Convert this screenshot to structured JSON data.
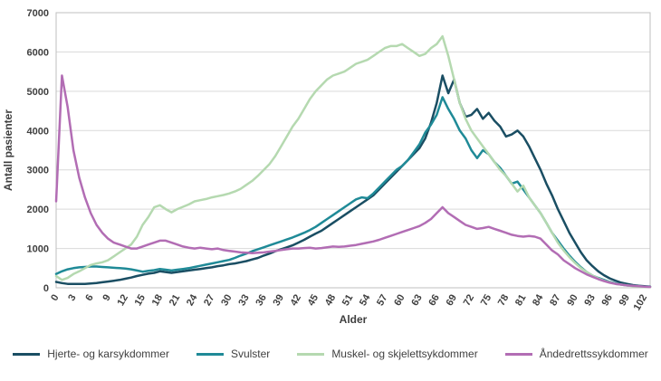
{
  "chart_data": {
    "type": "line",
    "title": "",
    "xlabel": "Alder",
    "ylabel": "Antall pasienter",
    "ylim": [
      0,
      7000
    ],
    "x_range": [
      0,
      103
    ],
    "y_ticks": [
      0,
      1000,
      2000,
      3000,
      4000,
      5000,
      6000,
      7000
    ],
    "x_ticks": [
      0,
      3,
      6,
      9,
      12,
      15,
      18,
      21,
      24,
      27,
      30,
      33,
      36,
      39,
      42,
      45,
      48,
      51,
      54,
      57,
      60,
      63,
      66,
      69,
      72,
      75,
      78,
      81,
      84,
      87,
      90,
      93,
      96,
      99,
      102
    ],
    "grid": "horizontal",
    "legend_position": "bottom",
    "x": [
      0,
      1,
      2,
      3,
      4,
      5,
      6,
      7,
      8,
      9,
      10,
      11,
      12,
      13,
      14,
      15,
      16,
      17,
      18,
      19,
      20,
      21,
      22,
      23,
      24,
      25,
      26,
      27,
      28,
      29,
      30,
      31,
      32,
      33,
      34,
      35,
      36,
      37,
      38,
      39,
      40,
      41,
      42,
      43,
      44,
      45,
      46,
      47,
      48,
      49,
      50,
      51,
      52,
      53,
      54,
      55,
      56,
      57,
      58,
      59,
      60,
      61,
      62,
      63,
      64,
      65,
      66,
      67,
      68,
      69,
      70,
      71,
      72,
      73,
      74,
      75,
      76,
      77,
      78,
      79,
      80,
      81,
      82,
      83,
      84,
      85,
      86,
      87,
      88,
      89,
      90,
      91,
      92,
      93,
      94,
      95,
      96,
      97,
      98,
      99,
      100,
      101,
      102,
      103
    ],
    "series": [
      {
        "name": "Hjerte- og karsykdommer",
        "color": "#1a4e63",
        "values": [
          150,
          120,
          100,
          100,
          100,
          100,
          110,
          120,
          140,
          160,
          180,
          200,
          230,
          260,
          300,
          330,
          360,
          380,
          420,
          400,
          380,
          400,
          420,
          440,
          460,
          480,
          500,
          520,
          550,
          570,
          600,
          620,
          650,
          680,
          720,
          760,
          820,
          870,
          930,
          980,
          1030,
          1080,
          1150,
          1220,
          1300,
          1380,
          1450,
          1550,
          1650,
          1750,
          1850,
          1950,
          2050,
          2150,
          2250,
          2350,
          2500,
          2650,
          2800,
          2950,
          3100,
          3250,
          3400,
          3550,
          3800,
          4200,
          4700,
          5400,
          4950,
          5300,
          4700,
          4350,
          4400,
          4550,
          4300,
          4450,
          4250,
          4100,
          3850,
          3900,
          4000,
          3850,
          3600,
          3300,
          3000,
          2650,
          2350,
          2000,
          1700,
          1400,
          1150,
          900,
          700,
          550,
          420,
          320,
          240,
          180,
          130,
          100,
          70,
          50,
          40,
          30
        ]
      },
      {
        "name": "Svulster",
        "color": "#1f8a97",
        "values": [
          350,
          420,
          470,
          500,
          520,
          530,
          540,
          540,
          530,
          520,
          510,
          500,
          490,
          470,
          440,
          410,
          430,
          450,
          480,
          460,
          440,
          460,
          480,
          500,
          530,
          560,
          590,
          620,
          650,
          680,
          710,
          760,
          820,
          870,
          930,
          980,
          1030,
          1080,
          1130,
          1180,
          1230,
          1280,
          1340,
          1400,
          1470,
          1550,
          1650,
          1750,
          1850,
          1950,
          2050,
          2150,
          2250,
          2300,
          2280,
          2400,
          2550,
          2700,
          2850,
          3000,
          3100,
          3250,
          3450,
          3650,
          3950,
          4150,
          4400,
          4850,
          4550,
          4300,
          4000,
          3800,
          3500,
          3300,
          3500,
          3400,
          3200,
          3050,
          2850,
          2650,
          2700,
          2500,
          2300,
          2100,
          1900,
          1650,
          1400,
          1200,
          1000,
          820,
          660,
          520,
          400,
          310,
          250,
          200,
          150,
          110,
          80,
          60,
          50,
          40,
          30,
          20
        ]
      },
      {
        "name": "Muskel- og skjelettsykdommer",
        "color": "#b5d9b0",
        "values": [
          300,
          200,
          250,
          350,
          420,
          500,
          580,
          620,
          650,
          700,
          800,
          900,
          1000,
          1100,
          1300,
          1600,
          1800,
          2050,
          2100,
          2000,
          1920,
          2000,
          2060,
          2120,
          2200,
          2230,
          2260,
          2300,
          2330,
          2360,
          2400,
          2450,
          2520,
          2620,
          2720,
          2850,
          3000,
          3150,
          3350,
          3600,
          3850,
          4100,
          4300,
          4550,
          4800,
          5000,
          5150,
          5300,
          5400,
          5450,
          5500,
          5600,
          5700,
          5750,
          5800,
          5900,
          6000,
          6100,
          6150,
          6150,
          6200,
          6100,
          6000,
          5900,
          5950,
          6100,
          6200,
          6400,
          5900,
          5300,
          4700,
          4300,
          4000,
          3800,
          3600,
          3400,
          3200,
          3000,
          2850,
          2650,
          2450,
          2600,
          2300,
          2100,
          1900,
          1650,
          1400,
          1150,
          950,
          780,
          630,
          500,
          400,
          310,
          240,
          180,
          140,
          100,
          80,
          60,
          40,
          30,
          20,
          15
        ]
      },
      {
        "name": "Åndedrettssykdommer",
        "color": "#b26db4",
        "values": [
          2200,
          5400,
          4600,
          3500,
          2800,
          2300,
          1900,
          1600,
          1400,
          1250,
          1150,
          1100,
          1050,
          1000,
          1000,
          1050,
          1100,
          1150,
          1200,
          1200,
          1150,
          1100,
          1050,
          1020,
          1000,
          1020,
          1000,
          980,
          1000,
          960,
          940,
          920,
          900,
          890,
          880,
          890,
          900,
          920,
          940,
          960,
          980,
          1000,
          1000,
          1010,
          1020,
          1000,
          1010,
          1030,
          1050,
          1040,
          1050,
          1070,
          1090,
          1120,
          1150,
          1180,
          1220,
          1270,
          1320,
          1370,
          1420,
          1470,
          1520,
          1570,
          1650,
          1750,
          1900,
          2050,
          1900,
          1800,
          1700,
          1600,
          1550,
          1500,
          1520,
          1550,
          1500,
          1450,
          1400,
          1350,
          1320,
          1300,
          1320,
          1300,
          1250,
          1100,
          950,
          850,
          700,
          600,
          500,
          420,
          340,
          280,
          220,
          170,
          130,
          100,
          80,
          60,
          50,
          40,
          30,
          20
        ]
      }
    ]
  },
  "styles": {
    "grid_color": "#d9d9d9",
    "border_color": "#bfbfbf",
    "text_color": "#3f3f3f",
    "background": "#ffffff",
    "line_width": 2.5
  }
}
